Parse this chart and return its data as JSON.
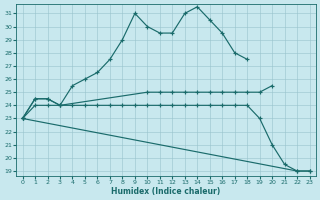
{
  "xlabel": "Humidex (Indice chaleur)",
  "xlim": [
    -0.5,
    23.5
  ],
  "ylim": [
    18.6,
    31.7
  ],
  "yticks": [
    19,
    20,
    21,
    22,
    23,
    24,
    25,
    26,
    27,
    28,
    29,
    30,
    31
  ],
  "xticks": [
    0,
    1,
    2,
    3,
    4,
    5,
    6,
    7,
    8,
    9,
    10,
    11,
    12,
    13,
    14,
    15,
    16,
    17,
    18,
    19,
    20,
    21,
    22,
    23
  ],
  "bg_color": "#c8e8ee",
  "grid_color": "#99c4cc",
  "line_color": "#1a6b6b",
  "lines": [
    {
      "x": [
        0,
        1,
        2,
        3,
        4,
        5,
        6,
        7,
        8,
        9,
        10,
        11,
        12,
        13,
        14,
        15,
        16,
        17,
        18
      ],
      "y": [
        23.0,
        24.5,
        24.5,
        24.0,
        25.5,
        26.0,
        26.5,
        27.5,
        29.0,
        31.0,
        30.0,
        29.5,
        29.5,
        31.0,
        31.5,
        30.5,
        29.5,
        28.0,
        27.5
      ]
    },
    {
      "x": [
        0,
        1,
        2,
        3,
        10,
        11,
        12,
        13,
        14,
        15,
        16,
        17,
        18,
        19,
        20
      ],
      "y": [
        23.0,
        24.5,
        24.5,
        24.0,
        25.0,
        25.0,
        25.0,
        25.0,
        25.0,
        25.0,
        25.0,
        25.0,
        25.0,
        25.0,
        25.5
      ]
    },
    {
      "x": [
        0,
        1,
        2,
        3,
        4,
        5,
        6,
        7,
        8,
        9,
        10,
        11,
        12,
        13,
        14,
        15,
        16,
        17,
        18,
        19,
        20,
        21,
        22,
        23
      ],
      "y": [
        23.0,
        24.0,
        24.0,
        24.0,
        24.0,
        24.0,
        24.0,
        24.0,
        24.0,
        24.0,
        24.0,
        24.0,
        24.0,
        24.0,
        24.0,
        24.0,
        24.0,
        24.0,
        24.0,
        23.0,
        21.0,
        19.5,
        19.0,
        19.0
      ]
    },
    {
      "x": [
        0,
        22,
        23
      ],
      "y": [
        23.0,
        19.0,
        19.0
      ]
    }
  ]
}
